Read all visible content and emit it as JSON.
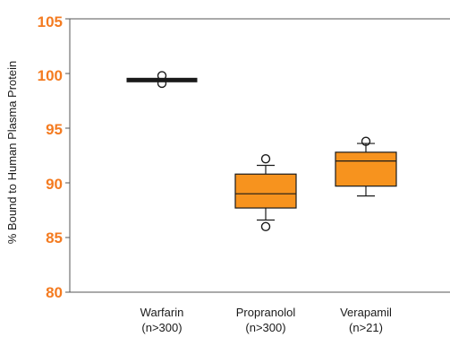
{
  "chart_data": {
    "type": "box",
    "title": "",
    "xlabel": "",
    "ylabel": "% Bound to Human Plasma Protein",
    "ylim": [
      80,
      105
    ],
    "yticks": [
      "80",
      "85",
      "90",
      "95",
      "100",
      "105"
    ],
    "grid": false,
    "categories": [
      {
        "name": "Warfarin",
        "sub": "(n>300)"
      },
      {
        "name": "Propranolol",
        "sub": "(n>300)"
      },
      {
        "name": "Verapamil",
        "sub": "(n>21)"
      }
    ],
    "boxes": [
      {
        "whisker_low": 99.3,
        "q1": 99.3,
        "median": 99.4,
        "q3": 99.5,
        "whisker_high": 99.5,
        "outliers": [
          99.1,
          99.8
        ]
      },
      {
        "whisker_low": 86.6,
        "q1": 87.7,
        "median": 89.0,
        "q3": 90.8,
        "whisker_high": 91.6,
        "outliers": [
          86.0,
          92.2
        ]
      },
      {
        "whisker_low": 88.8,
        "q1": 89.7,
        "median": 92.0,
        "q3": 92.8,
        "whisker_high": 93.6,
        "outliers": [
          93.8
        ]
      }
    ],
    "colors": {
      "box_fill": "#f7931e",
      "tick_label": "#f47b20",
      "outline": "#1a1a1a"
    }
  }
}
